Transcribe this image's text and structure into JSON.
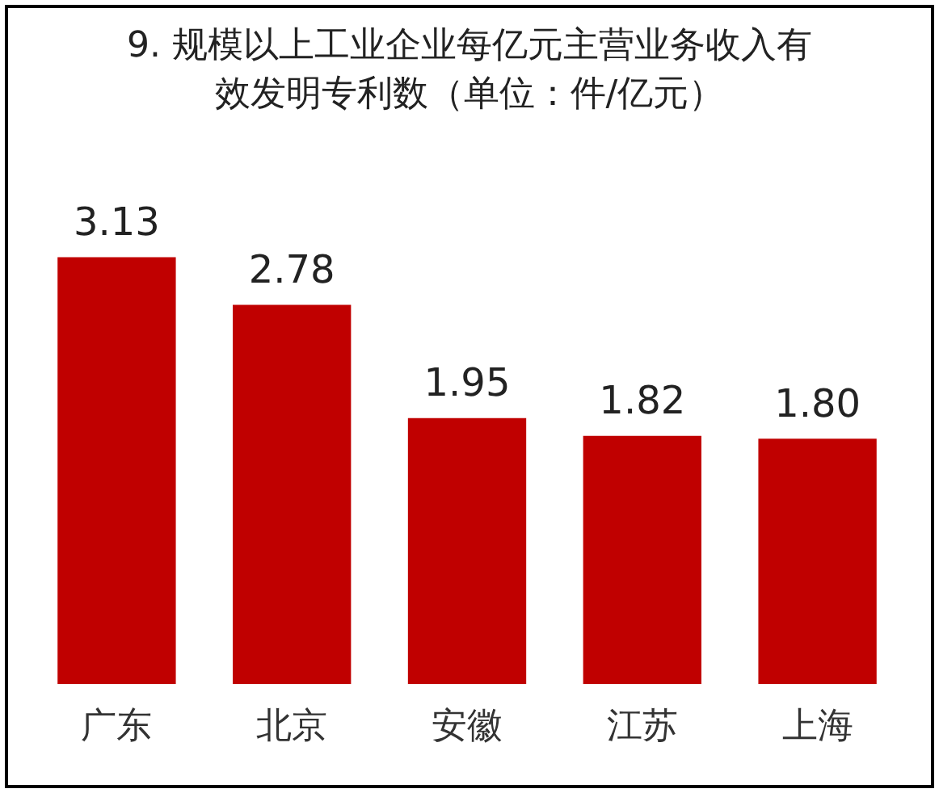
{
  "chart_data": {
    "type": "bar",
    "title": "9. 规模以上工业企业每亿元主营业务收入有效发明专利数（单位：件/亿元）",
    "categories": [
      "广东",
      "北京",
      "安徽",
      "江苏",
      "上海"
    ],
    "values": [
      3.13,
      2.78,
      1.95,
      1.82,
      1.8
    ],
    "value_labels": [
      "3.13",
      "2.78",
      "1.95",
      "1.82",
      "1.80"
    ],
    "color": "#c00000",
    "legend": false,
    "grid": false,
    "tick_labels": "x"
  }
}
